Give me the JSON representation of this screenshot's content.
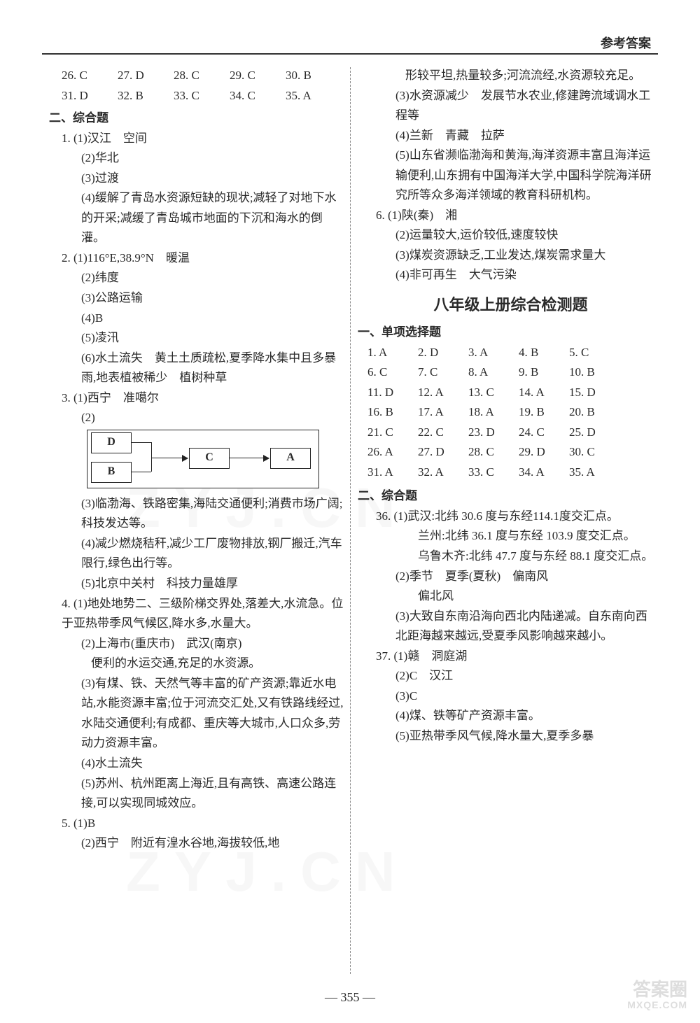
{
  "header": {
    "title": "参考答案"
  },
  "page_number": "— 355 —",
  "watermark": {
    "text": "ZYJ.CN",
    "badge_top": "答案圈",
    "badge_bottom": "MXQE.COM"
  },
  "left": {
    "mc_top": [
      [
        "26. C",
        "27. D",
        "28. C",
        "29. C",
        "30. B"
      ],
      [
        "31. D",
        "32. B",
        "33. C",
        "34. C",
        "35. A"
      ]
    ],
    "section2_title": "二、综合题",
    "q1": {
      "a": "1. (1)汉江　空间",
      "b": "(2)华北",
      "c": "(3)过渡",
      "d": "(4)缓解了青岛水资源短缺的现状;减轻了对地下水的开采;减缓了青岛城市地面的下沉和海水的倒灌。"
    },
    "q2": {
      "a": "2. (1)116°E,38.9°N　暖温",
      "b": "(2)纬度",
      "c": "(3)公路运输",
      "d": "(4)B",
      "e": "(5)凌汛",
      "f": "(6)水土流失　黄土土质疏松,夏季降水集中且多暴雨,地表植被稀少　植树种草"
    },
    "q3": {
      "a": "3. (1)西宁　准噶尔",
      "b_label": "(2)",
      "diagram": {
        "D": "D",
        "B": "B",
        "C": "C",
        "A": "A"
      },
      "c": "(3)临渤海、铁路密集,海陆交通便利;消费市场广阔;科技发达等。",
      "d": "(4)减少燃烧秸秆,减少工厂废物排放,钢厂搬迁,汽车限行,绿色出行等。",
      "e": "(5)北京中关村　科技力量雄厚"
    },
    "q4": {
      "a": "4. (1)地处地势二、三级阶梯交界处,落差大,水流急。位于亚热带季风气候区,降水多,水量大。",
      "b": "(2)上海市(重庆市)　武汉(南京)",
      "b2": "便利的水运交通,充足的水资源。",
      "c": "(3)有煤、铁、天然气等丰富的矿产资源;靠近水电站,水能资源丰富;位于河流交汇处,又有铁路线经过,水陆交通便利;有成都、重庆等大城市,人口众多,劳动力资源丰富。",
      "d": "(4)水土流失",
      "e": "(5)苏州、杭州距离上海近,且有高铁、高速公路连接,可以实现同城效应。"
    },
    "q5": {
      "a": "5. (1)B",
      "b": "(2)西宁　附近有湟水谷地,海拔较低,地"
    }
  },
  "right": {
    "q5cont": {
      "a": "形较平坦,热量较多;河流流经,水资源较充足。",
      "b": "(3)水资源减少　发展节水农业,修建跨流域调水工程等",
      "c": "(4)兰新　青藏　拉萨",
      "d": "(5)山东省濒临渤海和黄海,海洋资源丰富且海洋运输便利,山东拥有中国海洋大学,中国科学院海洋研究所等众多海洋领域的教育科研机构。"
    },
    "q6": {
      "a": "6. (1)陕(秦)　湘",
      "b": "(2)运量较大,运价较低,速度较快",
      "c": "(3)煤炭资源缺乏,工业发达,煤炭需求量大",
      "d": "(4)非可再生　大气污染"
    },
    "heading": "八年级上册综合检测题",
    "sec1_title": "一、单项选择题",
    "mc": [
      [
        "1. A",
        "2. D",
        "3. A",
        "4. B",
        "5. C"
      ],
      [
        "6. C",
        "7. C",
        "8. A",
        "9. B",
        "10. B"
      ],
      [
        "11. D",
        "12. A",
        "13. C",
        "14. A",
        "15. D"
      ],
      [
        "16. B",
        "17. A",
        "18. A",
        "19. B",
        "20. B"
      ],
      [
        "21. C",
        "22. C",
        "23. D",
        "24. C",
        "25. D"
      ],
      [
        "26. A",
        "27. D",
        "28. C",
        "29. D",
        "30. C"
      ],
      [
        "31. A",
        "32. A",
        "33. C",
        "34. A",
        "35. A"
      ]
    ],
    "sec2_title": "二、综合题",
    "q36": {
      "a": "36. (1)武汉:北纬 30.6 度与东经114.1度交汇点。",
      "b": "兰州:北纬 36.1 度与东经 103.9 度交汇点。",
      "c": "乌鲁木齐:北纬 47.7 度与东经 88.1 度交汇点。",
      "d": "(2)季节　夏季(夏秋)　偏南风",
      "d2": "偏北风",
      "e": "(3)大致自东南沿海向西北内陆递减。自东南向西北距海越来越远,受夏季风影响越来越小。"
    },
    "q37": {
      "a": "37. (1)赣　洞庭湖",
      "b": "(2)C　汉江",
      "c": "(3)C",
      "d": "(4)煤、铁等矿产资源丰富。",
      "e": "(5)亚热带季风气候,降水量大,夏季多暴"
    }
  }
}
